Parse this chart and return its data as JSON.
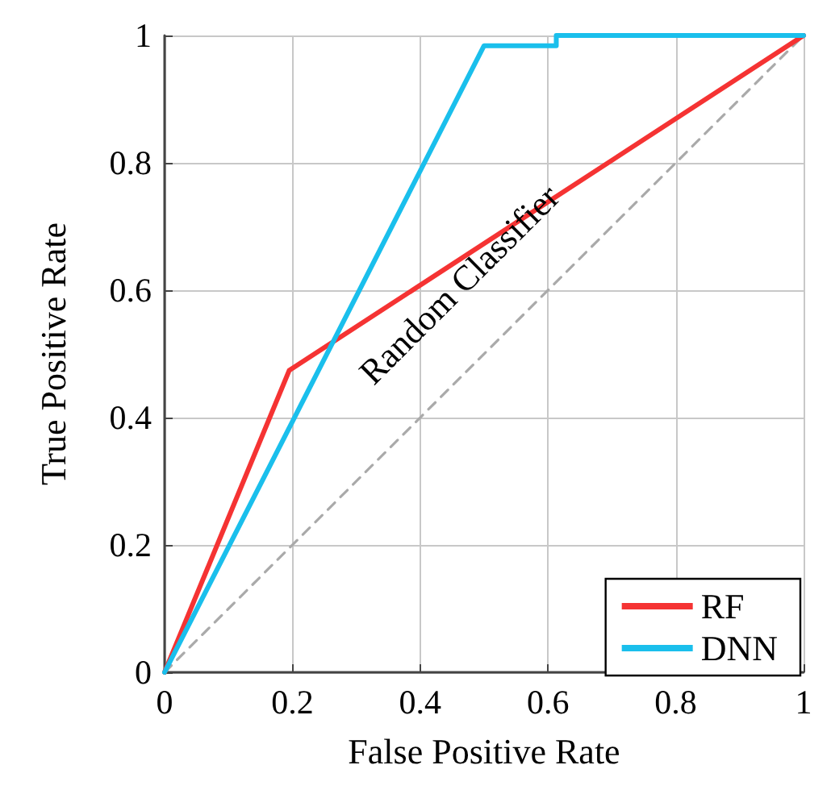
{
  "chart_data": {
    "type": "line",
    "xlabel": "False Positive Rate",
    "ylabel": "True Positive Rate",
    "xlim": [
      0,
      1
    ],
    "ylim": [
      0,
      1
    ],
    "xticks": [
      0,
      0.2,
      0.4,
      0.6,
      0.8,
      1
    ],
    "yticks": [
      0,
      0.2,
      0.4,
      0.6,
      0.8,
      1
    ],
    "grid": true,
    "legend": "bottom right",
    "marker": "none",
    "series": [
      {
        "name": "Random Classifier",
        "color": "#aaaaaa",
        "line_style": "dashed",
        "x": [
          0,
          1
        ],
        "values": [
          0,
          1
        ]
      },
      {
        "name": "RF",
        "color": "#f53333",
        "x": [
          0,
          0.195,
          1
        ],
        "values": [
          0,
          0.474,
          1
        ]
      },
      {
        "name": "DNN",
        "color": "#1abfec",
        "x": [
          0,
          0.5,
          0.613,
          0.613,
          1
        ],
        "values": [
          0,
          0.984,
          0.984,
          1,
          1
        ]
      }
    ]
  }
}
